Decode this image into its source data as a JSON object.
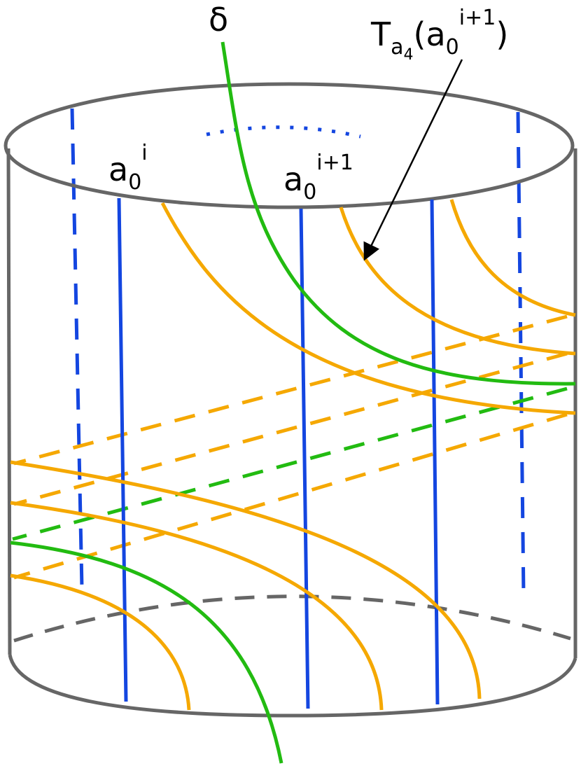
{
  "labels": {
    "delta": "δ",
    "a0_i": {
      "base": "a",
      "sub": "0",
      "sup": "i"
    },
    "a0_i1": {
      "base": "a",
      "sub": "0",
      "sup": "i+1"
    },
    "twist": {
      "base": "T",
      "sub_base": "a",
      "sub_sub": "4",
      "open": "(",
      "arg_base": "a",
      "arg_sub": "0",
      "arg_sup": "i+1",
      "close": ")"
    }
  }
}
